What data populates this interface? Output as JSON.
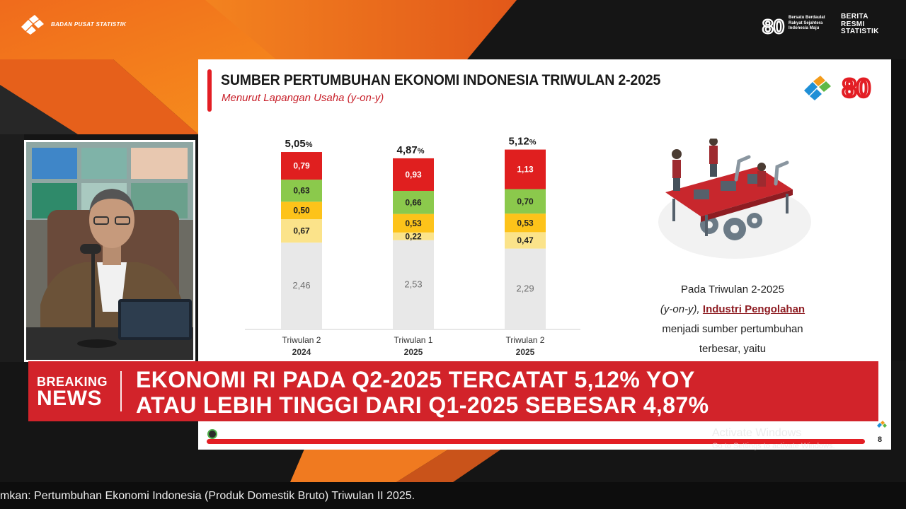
{
  "branding": {
    "org_name": "BADAN PUSAT STATISTIK",
    "anniversary_number": "80",
    "anniversary_tagline": [
      "Bersatu Berdaulat",
      "Rakyat Sejahtera",
      "Indonesia Maju"
    ],
    "brs_lines": [
      "BERITA",
      "RESMI",
      "STATISTIK"
    ]
  },
  "slide": {
    "title": "SUMBER PERTUMBUHAN EKONOMI INDONESIA TRIWULAN 2-2025",
    "subtitle": "Menurut Lapangan Usaha (y-on-y)",
    "logo_number": "80",
    "text_intro": "Pada Triwulan 2-2025",
    "text_yoy": "(y-on-y),",
    "text_highlight": "Industri Pengolahan",
    "text_line3": "menjadi sumber pertumbuhan",
    "text_line4": "terbesar, yaitu",
    "page_number": "8"
  },
  "chart_data": {
    "type": "bar",
    "stacked": true,
    "categories": [
      [
        "Triwulan 2",
        "2024"
      ],
      [
        "Triwulan 1",
        "2025"
      ],
      [
        "Triwulan 2",
        "2025"
      ]
    ],
    "totals": [
      "5,05",
      "4,87",
      "5,12"
    ],
    "total_unit": "%",
    "series": [
      {
        "color": "#e8e8e8",
        "text_color": "#707070",
        "values": [
          2.46,
          2.53,
          2.29
        ],
        "labels": [
          "2,46",
          "2,53",
          "2,29"
        ]
      },
      {
        "color": "#fbe38a",
        "text_color": "#222222",
        "values": [
          0.67,
          0.22,
          0.47
        ],
        "labels": [
          "0,67",
          "0,22",
          "0,47"
        ]
      },
      {
        "color": "#fdc31a",
        "text_color": "#222222",
        "values": [
          0.5,
          0.53,
          0.53
        ],
        "labels": [
          "0,50",
          "0,53",
          "0,53"
        ]
      },
      {
        "color": "#8bc94c",
        "text_color": "#222222",
        "values": [
          0.63,
          0.66,
          0.7
        ],
        "labels": [
          "0,63",
          "0,66",
          "0,70"
        ]
      },
      {
        "color": "#e01f1f",
        "text_color": "#ffffff",
        "values": [
          0.79,
          0.93,
          1.13
        ],
        "labels": [
          "0,79",
          "0,93",
          "1,13"
        ]
      }
    ],
    "grid": false,
    "legend": "none"
  },
  "cam": {},
  "breaking": {
    "label_line1": "BREAKING",
    "label_line2": "NEWS",
    "headline_line1": "EKONOMI RI PADA Q2-2025 TERCATAT 5,12% YOY",
    "headline_line2": "ATAU LEBIH TINGGI DARI Q1-2025 SEBESAR 4,87%"
  },
  "ticker": {
    "text": "mkan: Pertumbuhan Ekonomi Indonesia (Produk Domestik Bruto) Triwulan II 2025."
  },
  "watermark": {
    "line1": "Activate Windows",
    "line2": "Go to Settings to activate Windows."
  },
  "colors": {
    "accent_red": "#d2232a",
    "accent_orange": "#f47a20",
    "bar_red": "#e01f1f",
    "bar_green": "#8bc94c",
    "bar_orange": "#fdc31a",
    "bar_yellow": "#fbe38a",
    "bar_gray": "#e8e8e8"
  }
}
